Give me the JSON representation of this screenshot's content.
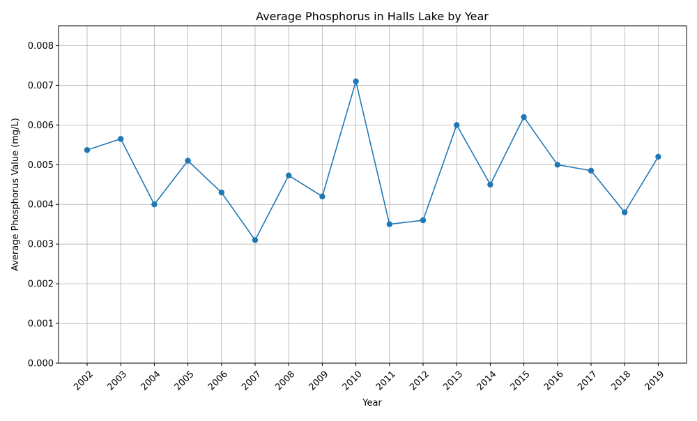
{
  "chart_data": {
    "type": "line",
    "title": "Average Phosphorus in Halls Lake by Year",
    "xlabel": "Year",
    "ylabel": "Average Phosphorus Value (mg/L)",
    "categories": [
      "2002",
      "2003",
      "2004",
      "2005",
      "2006",
      "2007",
      "2008",
      "2009",
      "2010",
      "2011",
      "2012",
      "2013",
      "2014",
      "2015",
      "2016",
      "2017",
      "2018",
      "2019"
    ],
    "series": [
      {
        "values": [
          0.00537,
          0.00565,
          0.004,
          0.0051,
          0.0043,
          0.0031,
          0.00473,
          0.0042,
          0.0071,
          0.0035,
          0.0036,
          0.006,
          0.0045,
          0.0062,
          0.005,
          0.00485,
          0.0038,
          0.0052
        ],
        "color": "#1f77b4",
        "marker": "circle"
      }
    ],
    "ylim": [
      0,
      0.0085
    ],
    "yticks": [
      "0.000",
      "0.001",
      "0.002",
      "0.003",
      "0.004",
      "0.005",
      "0.006",
      "0.007",
      "0.008"
    ],
    "grid": true,
    "legend": "none",
    "x_tick_rotation": "45 degrees"
  }
}
